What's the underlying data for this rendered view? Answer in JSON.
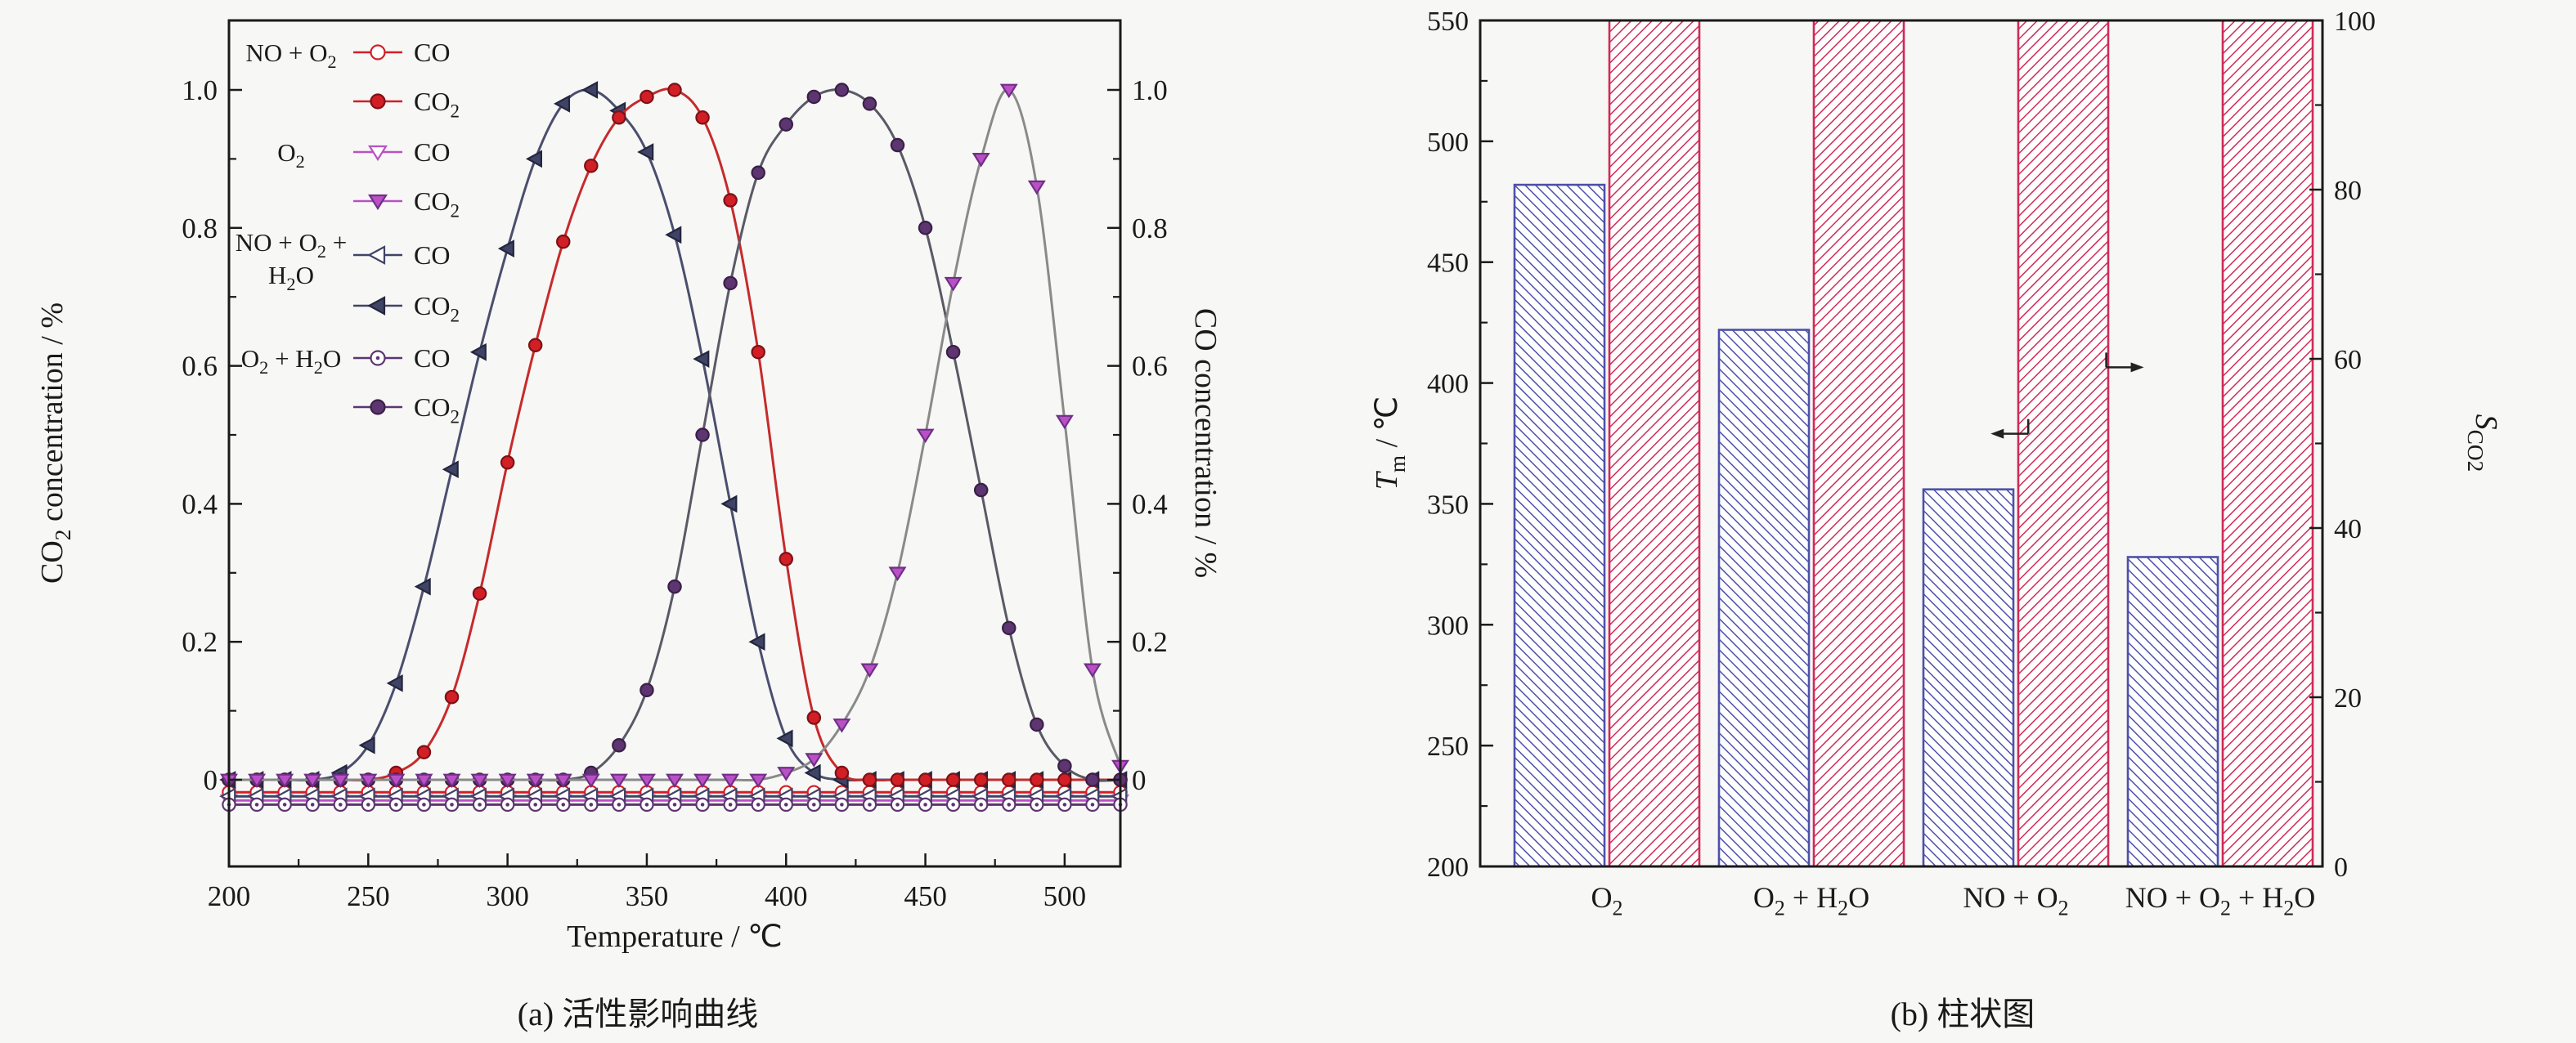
{
  "page": {
    "background": "#f7f7f6",
    "text_color": "#1a1a1a"
  },
  "captions": {
    "a": "(a) 活性影响曲线",
    "b": "(b) 柱状图"
  },
  "chart_data": [
    {
      "id": "activity-curves",
      "type": "line",
      "xlabel": "Temperature / ℃",
      "ylabel_left": "CO₂ concentration / %",
      "ylabel_right": "CO concentration / %",
      "xlim": [
        200,
        520
      ],
      "xticks": [
        200,
        250,
        300,
        350,
        400,
        450,
        500
      ],
      "ylim": [
        -0.126,
        1.1
      ],
      "yticks": [
        0,
        0.2,
        0.4,
        0.6,
        0.8,
        1.0
      ],
      "grid": false,
      "legend_position": "top-left",
      "x": [
        200,
        210,
        220,
        230,
        240,
        250,
        260,
        270,
        280,
        290,
        300,
        310,
        320,
        330,
        340,
        350,
        360,
        370,
        380,
        390,
        400,
        410,
        420,
        430,
        440,
        450,
        460,
        470,
        480,
        490,
        500,
        510,
        520
      ],
      "series": [
        {
          "group": "NO + O₂",
          "species": "CO",
          "marker": "circle",
          "fill": "open",
          "color": "#d21f26",
          "line_color": "#d21f26",
          "values_const": 0,
          "display_offset": -0.018
        },
        {
          "group": "O₂",
          "species": "CO",
          "marker": "triangle-down",
          "fill": "open",
          "color": "#bb50c6",
          "line_color": "#bb50c6",
          "values_const": 0,
          "display_offset": -0.03
        },
        {
          "group": "NO + O₂ + H₂O",
          "species": "CO",
          "marker": "triangle-left",
          "fill": "open",
          "color": "#3f4466",
          "line_color": "#3f4466",
          "values_const": 0,
          "display_offset": -0.024
        },
        {
          "group": "O₂ + H₂O",
          "species": "CO",
          "marker": "circle-dot",
          "fill": "open",
          "color": "#5d3570",
          "line_color": "#5d3570",
          "values_const": 0,
          "display_offset": -0.036
        },
        {
          "group": "NO + O₂ + H₂O",
          "species": "CO₂",
          "marker": "triangle-left",
          "fill": "filled",
          "color": "#3f4466",
          "edge": "#23263d",
          "line_color": "#4b4f6e",
          "values": [
            0,
            0,
            0,
            0,
            0.01,
            0.05,
            0.14,
            0.28,
            0.45,
            0.62,
            0.77,
            0.9,
            0.98,
            1.0,
            0.97,
            0.91,
            0.79,
            0.61,
            0.4,
            0.2,
            0.06,
            0.01,
            0,
            0,
            0,
            0,
            0,
            0,
            0,
            0,
            0,
            0,
            0
          ]
        },
        {
          "group": "NO + O₂",
          "species": "CO₂",
          "marker": "circle",
          "fill": "filled",
          "color": "#d21f26",
          "edge": "#7c1216",
          "line_color": "#c62b2b",
          "values": [
            0,
            0,
            0,
            0,
            0,
            0,
            0.01,
            0.04,
            0.12,
            0.27,
            0.46,
            0.63,
            0.78,
            0.89,
            0.96,
            0.99,
            1.0,
            0.96,
            0.84,
            0.62,
            0.32,
            0.09,
            0.01,
            0,
            0,
            0,
            0,
            0,
            0,
            0,
            0,
            0,
            0
          ]
        },
        {
          "group": "O₂ + H₂O",
          "species": "CO₂",
          "marker": "circle",
          "fill": "filled",
          "color": "#5d3570",
          "edge": "#3a1f47",
          "line_color": "#5a5a66",
          "values": [
            0,
            0,
            0,
            0,
            0,
            0,
            0,
            0,
            0,
            0,
            0,
            0,
            0,
            0.01,
            0.05,
            0.13,
            0.28,
            0.5,
            0.72,
            0.88,
            0.95,
            0.99,
            1.0,
            0.98,
            0.92,
            0.8,
            0.62,
            0.42,
            0.22,
            0.08,
            0.02,
            0,
            0
          ]
        },
        {
          "group": "O₂",
          "species": "CO₂",
          "marker": "triangle-down",
          "fill": "filled",
          "color": "#bb50c6",
          "edge": "#6f2f86",
          "line_color": "#8a8a8a",
          "values": [
            0,
            0,
            0,
            0,
            0,
            0,
            0,
            0,
            0,
            0,
            0,
            0,
            0,
            0,
            0,
            0,
            0,
            0,
            0,
            0,
            0.01,
            0.03,
            0.08,
            0.16,
            0.3,
            0.5,
            0.72,
            0.9,
            1.0,
            0.86,
            0.52,
            0.16,
            0.02
          ]
        }
      ],
      "legend_groups": [
        {
          "label": "NO + O₂",
          "entries": [
            {
              "name": "CO",
              "marker": "circle",
              "fill": "open",
              "color": "#d21f26"
            },
            {
              "name": "CO₂",
              "marker": "circle",
              "fill": "filled",
              "color": "#d21f26",
              "edge": "#7c1216"
            }
          ]
        },
        {
          "label": "O₂",
          "entries": [
            {
              "name": "CO",
              "marker": "triangle-down",
              "fill": "open",
              "color": "#bb50c6"
            },
            {
              "name": "CO₂",
              "marker": "triangle-down",
              "fill": "filled",
              "color": "#bb50c6",
              "edge": "#6f2f86"
            }
          ]
        },
        {
          "label": "NO + O₂ +\nH₂O",
          "entries": [
            {
              "name": "CO",
              "marker": "triangle-left",
              "fill": "open",
              "color": "#3f4466"
            },
            {
              "name": "CO₂",
              "marker": "triangle-left",
              "fill": "filled",
              "color": "#3f4466",
              "edge": "#23263d"
            }
          ]
        },
        {
          "label": "O₂ + H₂O",
          "entries": [
            {
              "name": "CO",
              "marker": "circle-dot",
              "fill": "open",
              "color": "#5d3570"
            },
            {
              "name": "CO₂",
              "marker": "circle",
              "fill": "filled",
              "color": "#5d3570",
              "edge": "#3a1f47"
            }
          ]
        }
      ]
    },
    {
      "id": "bar-summary",
      "type": "bar",
      "categories": [
        "O₂",
        "O₂ + H₂O",
        "NO + O₂",
        "NO + O₂ + H₂O"
      ],
      "ylabel_left": {
        "main": "T",
        "sub": "m",
        "rest": " / ℃"
      },
      "ylabel_right": {
        "main": "S",
        "sub": "CO₂",
        "rest": ""
      },
      "ylim_left": [
        200,
        550
      ],
      "yticks_left": [
        200,
        250,
        300,
        350,
        400,
        450,
        500,
        550
      ],
      "ylim_right": [
        0,
        100
      ],
      "yticks_right": [
        0,
        20,
        40,
        60,
        80,
        100
      ],
      "series": [
        {
          "name": "Tm / ℃",
          "axis": "left",
          "values": [
            482,
            422,
            356,
            328
          ],
          "color": "#4d51a8",
          "hatch": "/"
        },
        {
          "name": "SCO₂",
          "axis": "right",
          "values": [
            100,
            100,
            100,
            100
          ],
          "color": "#cf2b57",
          "hatch": "\\"
        }
      ],
      "annotations": [
        {
          "dir": "left",
          "x_frac": 0.608,
          "axis": "left",
          "value": 379
        },
        {
          "dir": "right",
          "x_frac": 0.786,
          "axis": "right",
          "value": 59
        }
      ]
    }
  ]
}
